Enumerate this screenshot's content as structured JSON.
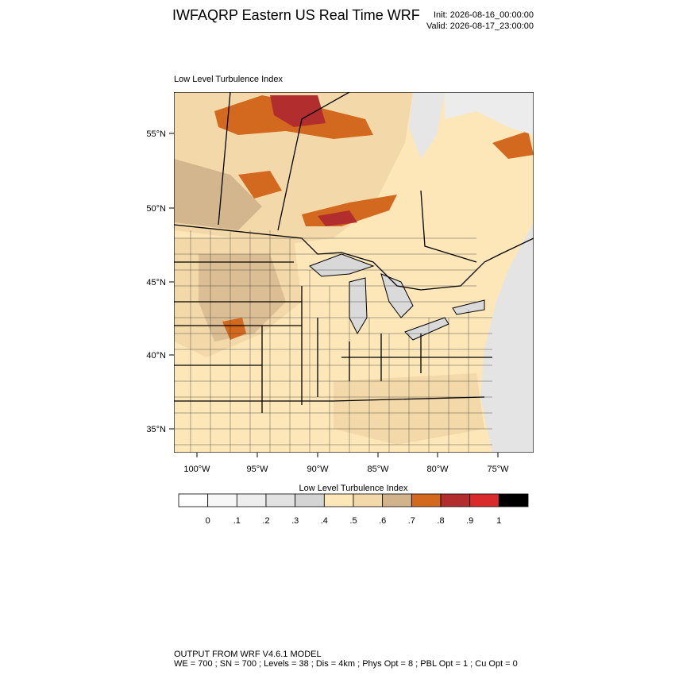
{
  "header": {
    "title": "IWFAQRP Eastern US Real Time WRF",
    "init": "Init: 2026-08-16_00:00:00",
    "valid": "Valid: 2026-08-17_23:00:00"
  },
  "map": {
    "label": "Low Level Turbulence Index",
    "lat_labels": [
      "55°N",
      "50°N",
      "45°N",
      "40°N",
      "35°N"
    ],
    "lon_labels": [
      "100°W",
      "95°W",
      "90°W",
      "85°W",
      "80°W",
      "75°W"
    ]
  },
  "colorbar": {
    "title": "Low Level Turbulence Index",
    "colors": [
      "#ffffff",
      "#f7f7f7",
      "#eeeeee",
      "#e2e2e2",
      "#d4d4d4",
      "#fde6b8",
      "#f3d9a9",
      "#d1b48c",
      "#d2691e",
      "#b22d2d",
      "#d92b2b",
      "#000000"
    ],
    "labels": [
      "0",
      ".1",
      ".2",
      ".3",
      ".4",
      ".5",
      ".6",
      ".7",
      ".8",
      ".9",
      "1"
    ]
  },
  "footer": {
    "lines": [
      "OUTPUT FROM WRF V4.6.1 MODEL",
      "WE = 700 ; SN = 700 ; Levels = 38 ; Dis = 4km ; Phys Opt = 8 ; PBL Opt = 1 ; Cu Opt = 0"
    ]
  }
}
